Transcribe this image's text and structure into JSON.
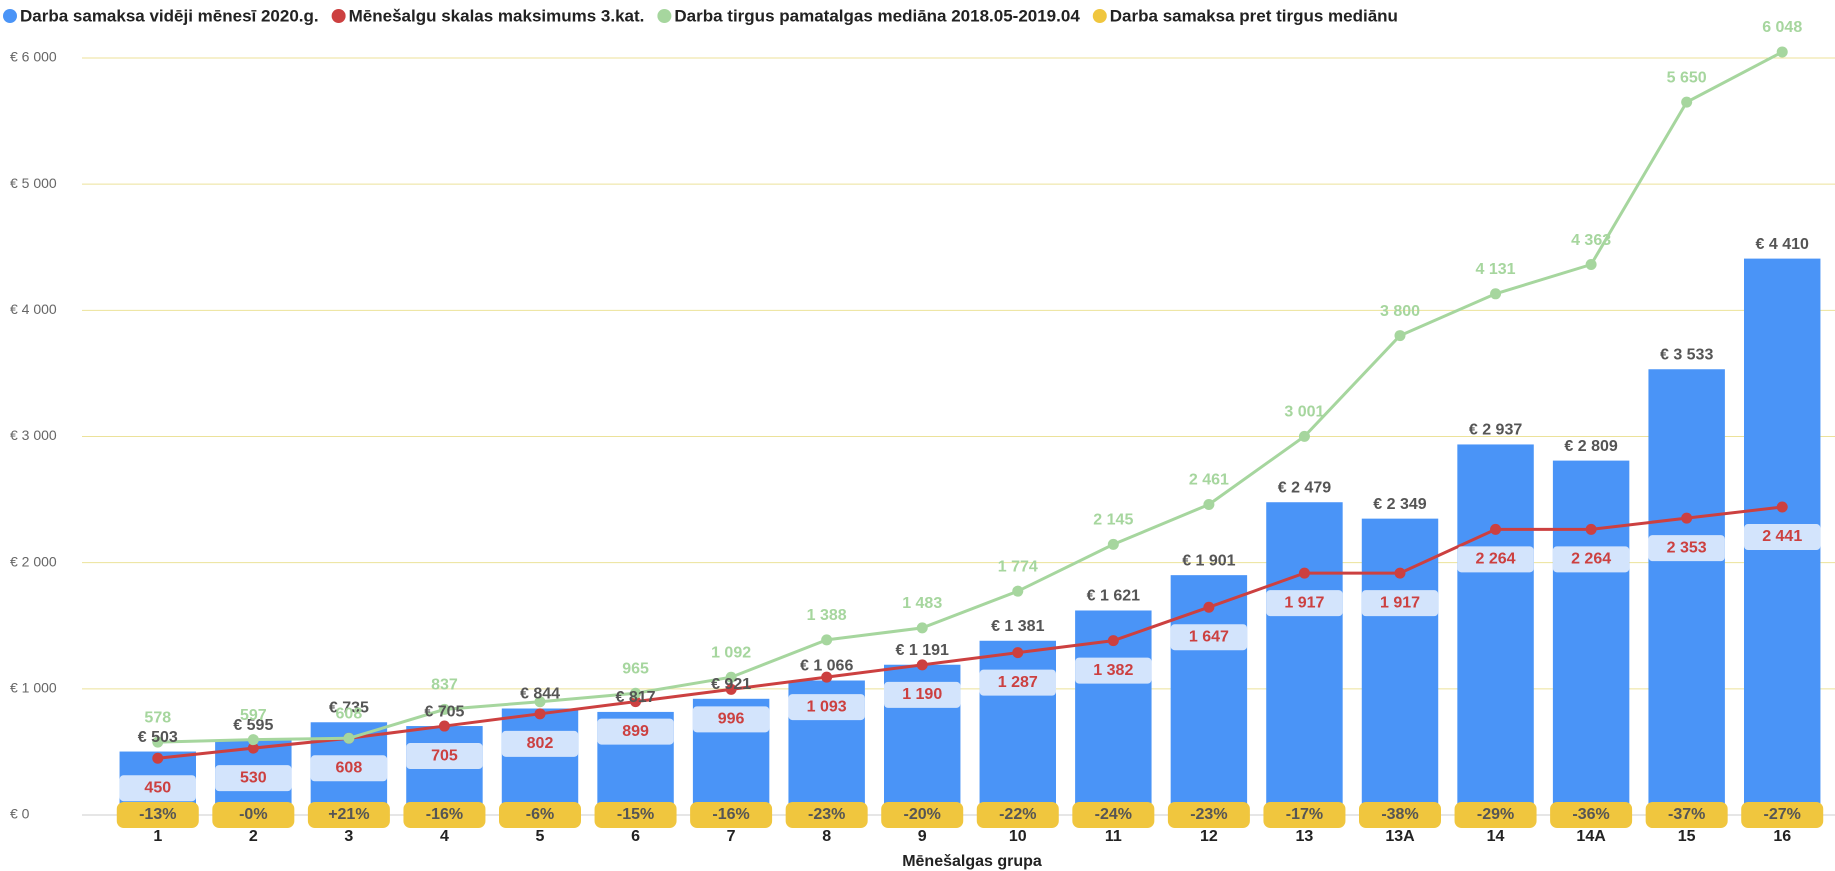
{
  "chart_data": {
    "type": "bar",
    "x_label": "Mēnešalgas grupa",
    "categories": [
      "1",
      "2",
      "3",
      "4",
      "5",
      "6",
      "7",
      "8",
      "9",
      "10",
      "11",
      "12",
      "13",
      "13A",
      "14",
      "14A",
      "15",
      "16"
    ],
    "ylim": [
      0,
      6000
    ],
    "yticks": [
      {
        "value": 0,
        "label": "€ 0"
      },
      {
        "value": 1000,
        "label": "€ 1 000"
      },
      {
        "value": 2000,
        "label": "€ 2 000"
      },
      {
        "value": 3000,
        "label": "€ 3 000"
      },
      {
        "value": 4000,
        "label": "€ 4 000"
      },
      {
        "value": 5000,
        "label": "€ 5 000"
      },
      {
        "value": 6000,
        "label": "€ 6 000"
      }
    ],
    "grid": true,
    "legend": "top",
    "series": [
      {
        "name": "Darba samaksa vidēji mēnesī 2020.g.",
        "type": "bar",
        "color": "#4a94f7",
        "values": [
          503,
          595,
          735,
          705,
          844,
          817,
          921,
          1066,
          1191,
          1381,
          1621,
          1901,
          2479,
          2349,
          2937,
          2809,
          3533,
          4410
        ],
        "value_labels": [
          "€ 503",
          "€ 595",
          "€ 735",
          "€ 705",
          "€ 844",
          "€ 817",
          "€ 921",
          "€ 1 066",
          "€ 1 191",
          "€ 1 381",
          "€ 1 621",
          "€ 1 901",
          "€ 2 479",
          "€ 2 349",
          "€ 2 937",
          "€ 2 809",
          "€ 3 533",
          "€ 4 410"
        ]
      },
      {
        "name": "Mēnešalgu skalas maksimums 3.kat.",
        "type": "line",
        "color": "#cc4040",
        "values": [
          450,
          530,
          608,
          705,
          802,
          899,
          996,
          1093,
          1190,
          1287,
          1382,
          1647,
          1917,
          1917,
          2264,
          2264,
          2353,
          2441
        ],
        "value_labels": [
          "450",
          "530",
          "608",
          "705",
          "802",
          "899",
          "996",
          "1 093",
          "1 190",
          "1 287",
          "1 382",
          "1 647",
          "1 917",
          "1 917",
          "2 264",
          "2 264",
          "2 353",
          "2 441"
        ]
      },
      {
        "name": "Darba tirgus pamatalgas mediāna 2018.05-2019.04",
        "type": "line",
        "color": "#a6d69e",
        "values": [
          578,
          597,
          608,
          837,
          898,
          965,
          1092,
          1388,
          1483,
          1774,
          2145,
          2461,
          3001,
          3800,
          4131,
          4363,
          5650,
          6048
        ],
        "value_labels": [
          "578",
          "597",
          "608",
          "837",
          null,
          "965",
          "1 092",
          "1 388",
          "1 483",
          "1 774",
          "2 145",
          "2 461",
          "3 001",
          "3 800",
          "4 131",
          "4 363",
          "5 650",
          "6 048"
        ]
      },
      {
        "name": "Darba samaksa pret tirgus mediānu",
        "type": "badge",
        "color": "#f0c63e",
        "values": [
          -13,
          0,
          21,
          -16,
          -6,
          -15,
          -16,
          -23,
          -20,
          -22,
          -24,
          -23,
          -17,
          -38,
          -29,
          -36,
          -37,
          -27
        ],
        "value_labels": [
          "-13%",
          "-0%",
          "+21%",
          "-16%",
          "-6%",
          "-15%",
          "-16%",
          "-23%",
          "-20%",
          "-22%",
          "-24%",
          "-23%",
          "-17%",
          "-38%",
          "-29%",
          "-36%",
          "-37%",
          "-27%"
        ]
      }
    ]
  }
}
